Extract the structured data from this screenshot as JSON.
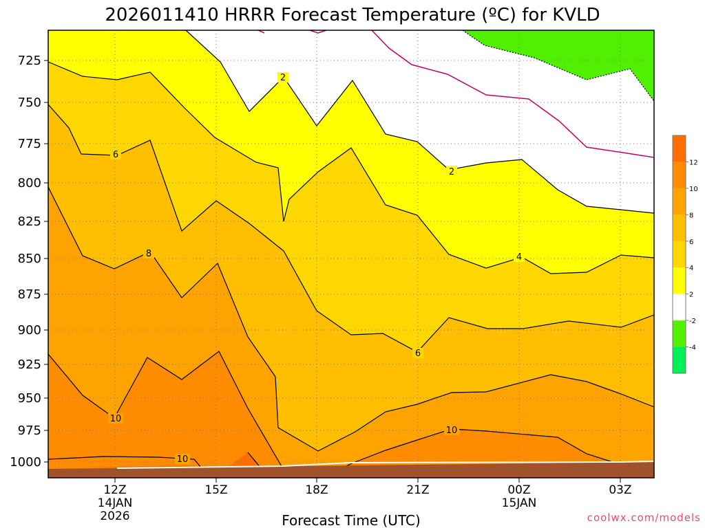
{
  "chart_data": {
    "type": "contour",
    "title": "2026011410 HRRR Forecast Temperature (ºC) for KVLD",
    "xlabel": "Forecast Time (UTC)",
    "ylabel": "",
    "y_axis": {
      "ticks": [
        "725",
        "750",
        "775",
        "800",
        "825",
        "850",
        "875",
        "900",
        "925",
        "950",
        "975",
        "1000"
      ]
    },
    "x_axis": {
      "ticks": [
        {
          "label": "12Z",
          "sub": [
            "14JAN",
            "2026"
          ]
        },
        {
          "label": "15Z",
          "sub": []
        },
        {
          "label": "18Z",
          "sub": []
        },
        {
          "label": "21Z",
          "sub": []
        },
        {
          "label": "00Z",
          "sub": [
            "15JAN"
          ]
        },
        {
          "label": "03Z",
          "sub": []
        }
      ]
    },
    "colorbar": {
      "labels": [
        "-4",
        "-2",
        "2",
        "4",
        "6",
        "8",
        "10",
        "12"
      ],
      "colors": [
        "#00f05a",
        "#50f000",
        "#ffffff",
        "#ffff00",
        "#ffd700",
        "#ffbf00",
        "#ffa300",
        "#ff8c00",
        "#ff6e00"
      ]
    },
    "contour_labels": [
      "2",
      "2",
      "4",
      "6",
      "6",
      "8",
      "10",
      "10",
      "10"
    ],
    "grid": true,
    "watermark": "coolwx.com/models"
  }
}
